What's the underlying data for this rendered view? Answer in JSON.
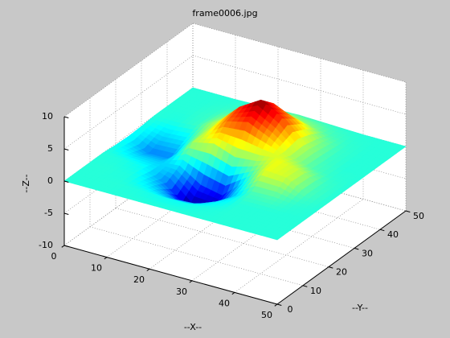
{
  "chart_data": {
    "type": "surface",
    "title": "frame0006.jpg",
    "xlabel": "--X--",
    "ylabel": "--Y--",
    "zlabel": "--Z--",
    "colormap": "jet",
    "grid": true,
    "x": [
      0,
      5,
      10,
      15,
      20,
      25,
      30,
      35,
      40,
      45,
      50
    ],
    "y": [
      0,
      5,
      10,
      15,
      20,
      25,
      30,
      35,
      40,
      45,
      50
    ],
    "z": [
      [
        0,
        0,
        0,
        0,
        -0.2,
        -0.3,
        -0.2,
        0,
        0,
        0,
        0
      ],
      [
        0,
        0,
        0,
        -0.1,
        -0.9,
        -1.9,
        -0.9,
        -0.1,
        0,
        0,
        0
      ],
      [
        0,
        0,
        -0.1,
        -0.4,
        -1.0,
        -1.8,
        -0.7,
        0.2,
        0.2,
        0.1,
        0
      ],
      [
        0,
        -0.1,
        -0.9,
        -1.9,
        -0.7,
        1.5,
        1.6,
        1.8,
        1.2,
        0.4,
        0.1
      ],
      [
        0,
        -0.3,
        -2.1,
        -4.9,
        -2.8,
        2.2,
        4.2,
        5.0,
        3.5,
        1.2,
        0.2
      ],
      [
        0,
        -0.3,
        -1.9,
        -4.6,
        -3.5,
        1.0,
        5.0,
        7.0,
        5.0,
        1.7,
        0.3
      ],
      [
        0,
        -0.1,
        -0.6,
        -1.4,
        -0.6,
        1.3,
        3.5,
        5.0,
        3.5,
        1.2,
        0.2
      ],
      [
        0,
        0,
        0,
        0.4,
        2.3,
        2.4,
        1.6,
        1.7,
        1.2,
        0.4,
        0.1
      ],
      [
        0,
        0,
        0,
        0.5,
        2.0,
        1.8,
        0.5,
        0.3,
        0.2,
        0.1,
        0
      ],
      [
        0,
        0,
        0,
        0.1,
        0.4,
        0.3,
        0.1,
        0,
        0,
        0,
        0
      ],
      [
        0,
        0,
        0,
        0,
        0,
        0,
        0,
        0,
        0,
        0,
        0
      ]
    ],
    "xlim": [
      0,
      50
    ],
    "ylim": [
      0,
      50
    ],
    "zlim": [
      -10,
      10
    ],
    "xticks": [
      0,
      10,
      20,
      30,
      40,
      50
    ],
    "yticks": [
      0,
      10,
      20,
      30,
      40,
      50
    ],
    "zticks": [
      -10,
      -5,
      0,
      5,
      10
    ]
  }
}
